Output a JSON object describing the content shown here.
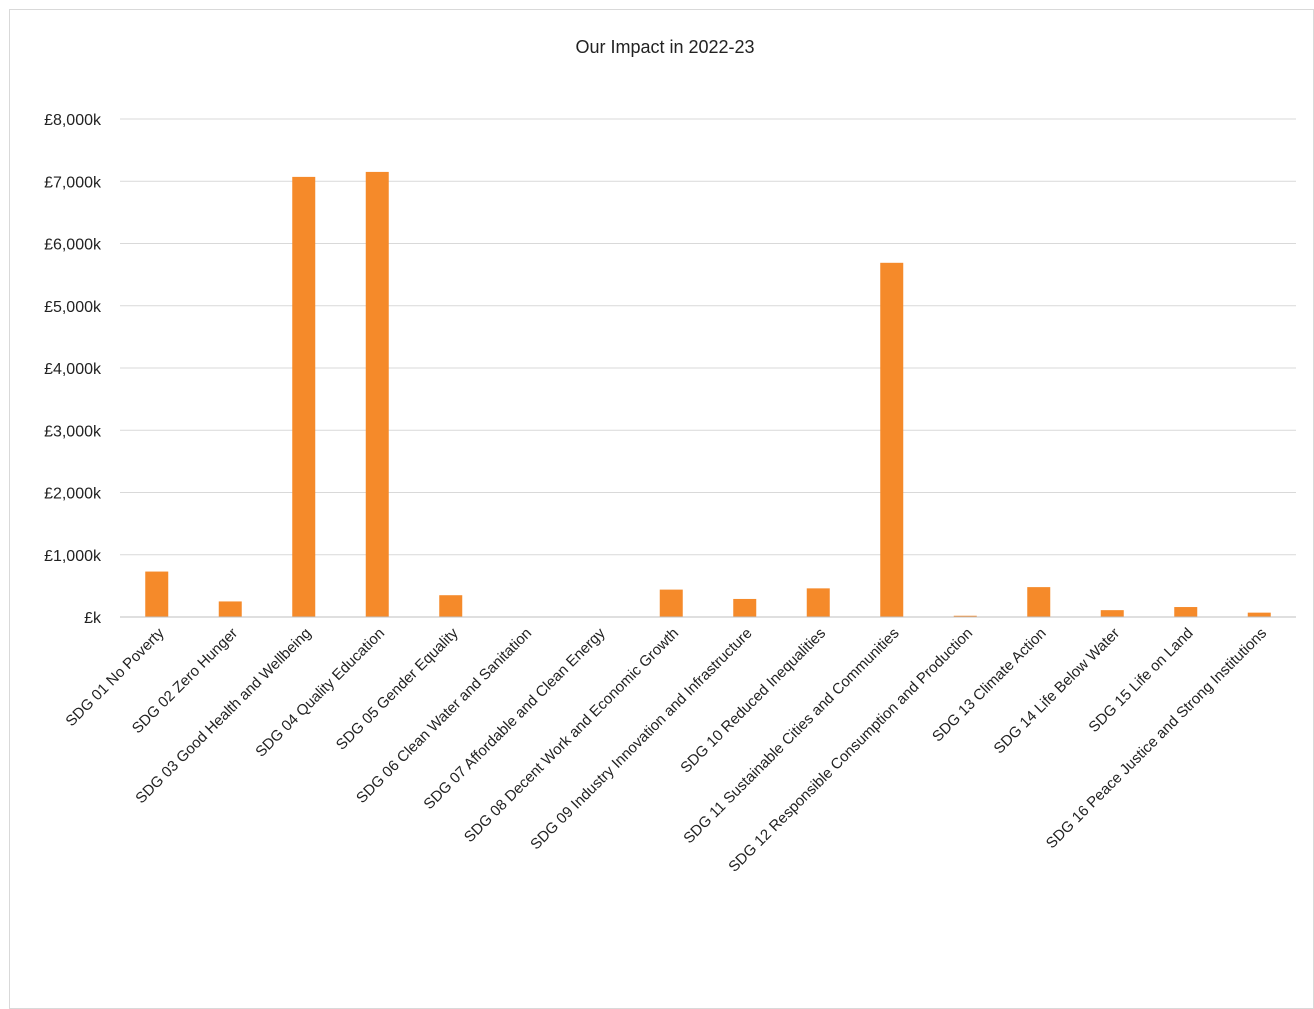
{
  "chart_data": {
    "type": "bar",
    "title": "Our Impact in 2022-23",
    "xlabel": "",
    "ylabel": "",
    "unit": "£k",
    "ylim": [
      0,
      8000
    ],
    "yticks": [
      0,
      1000,
      2000,
      3000,
      4000,
      5000,
      6000,
      7000,
      8000
    ],
    "ytick_labels": [
      "£k",
      "£1,000k",
      "£2,000k",
      "£3,000k",
      "£4,000k",
      "£5,000k",
      "£6,000k",
      "£7,000k",
      "£8,000k"
    ],
    "grid": true,
    "legend": "none",
    "bar_color": "#F58A2A",
    "categories": [
      "SDG 01 No Poverty",
      "SDG 02 Zero Hunger",
      "SDG 03 Good Health and Wellbeing",
      "SDG 04 Quality Education",
      "SDG 05 Gender Equality",
      "SDG 06 Clean Water and Sanitation",
      "SDG 07 Affordable and Clean Energy",
      "SDG 08 Decent Work and Economic Growth",
      "SDG 09 Industry Innovation and Infrastructure",
      "SDG 10 Reduced Inequalities",
      "SDG 11 Sustainable Cities and Communities",
      "SDG 12 Responsible Consumption and Production",
      "SDG 13 Climate Action",
      "SDG 14 Life Below Water",
      "SDG 15 Life on Land",
      "SDG 16 Peace Justice and Strong Institutions"
    ],
    "values": [
      730,
      250,
      7070,
      7150,
      350,
      0,
      0,
      440,
      290,
      460,
      5690,
      20,
      480,
      110,
      160,
      70
    ]
  }
}
